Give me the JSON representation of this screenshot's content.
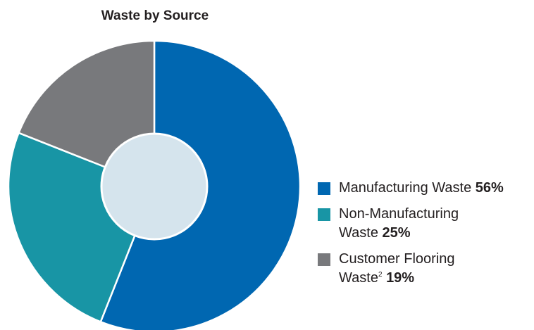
{
  "chart_data": {
    "type": "pie",
    "title": "Waste by Source",
    "donut": true,
    "legend_position": "right",
    "slices": [
      {
        "label": "Manufacturing Waste",
        "label_line2": "",
        "sup": "",
        "value": 56,
        "value_label": "56%",
        "color": "#0067b1"
      },
      {
        "label": "Non-Manufacturing",
        "label_line2": "Waste",
        "sup": "",
        "value": 25,
        "value_label": "25%",
        "color": "#1895a5"
      },
      {
        "label": "Customer Flooring",
        "label_line2": "Waste",
        "sup": "2",
        "value": 19,
        "value_label": "19%",
        "color": "#78797c"
      }
    ],
    "center_color": "#d5e4ed"
  }
}
